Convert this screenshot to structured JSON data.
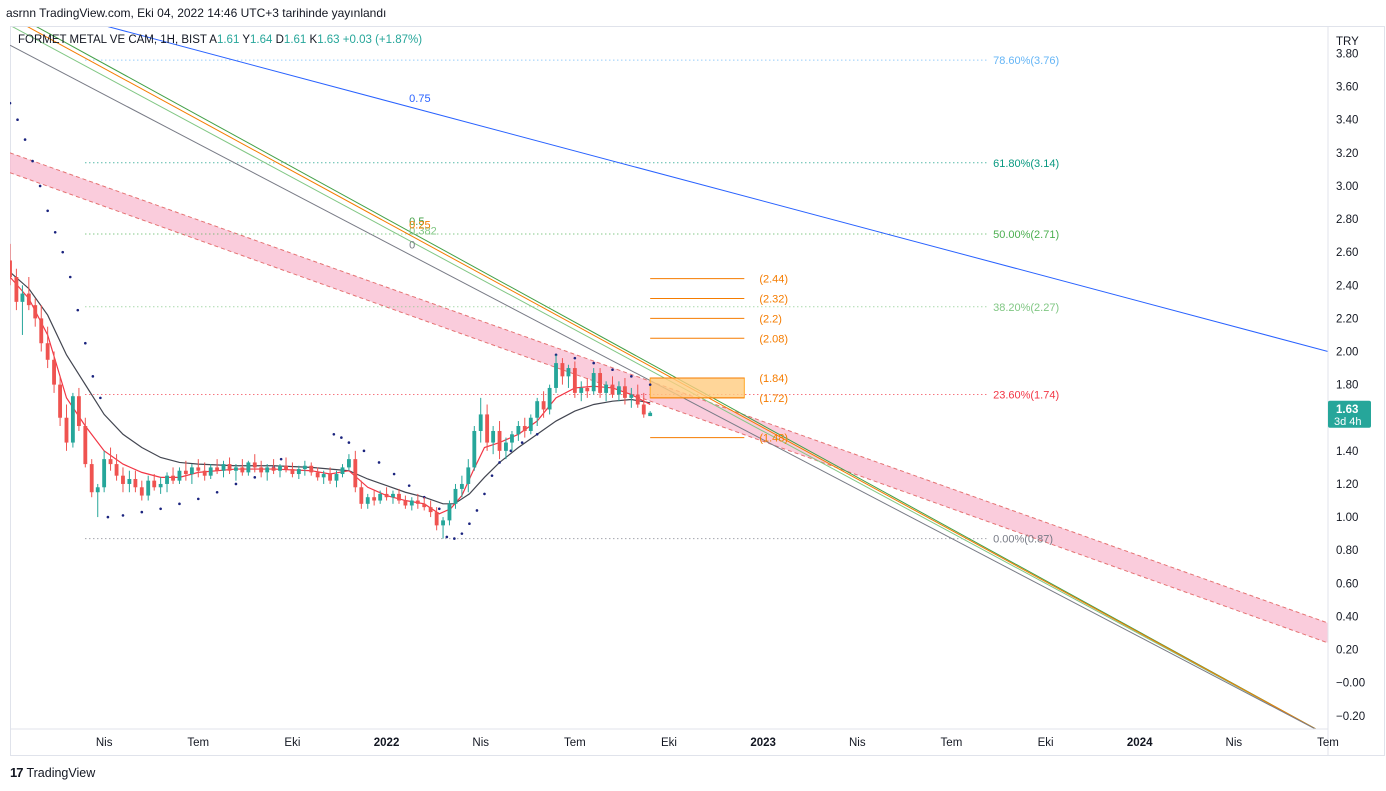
{
  "header": {
    "publish_text": "asrnn TradingView.com, Eki 04, 2022 14:46 UTC+3 tarihinde yayınlandı"
  },
  "legend": {
    "symbol": "FORMET METAL VE CAM, 1H, BIST",
    "open_label": "A",
    "open": "1.61",
    "high_label": "Y",
    "high": "1.64",
    "low_label": "D",
    "low": "1.61",
    "close_label": "K",
    "close": "1.63",
    "change": "+0.03 (+1.87%)"
  },
  "footer": {
    "brand": "TradingView",
    "logo_text": "17"
  },
  "colors": {
    "up": "#26a69a",
    "down": "#ef5350",
    "sar": "#1a237e",
    "ema_fast": "#f23645",
    "ema_slow": "#434651"
  },
  "chart_data": {
    "type": "candlestick",
    "currency": "TRY",
    "ylim": [
      -0.28,
      3.96
    ],
    "y_ticks": [
      "3.80",
      "3.60",
      "3.40",
      "3.20",
      "3.00",
      "2.80",
      "2.60",
      "2.40",
      "2.20",
      "2.00",
      "1.80",
      "1.60",
      "1.40",
      "1.20",
      "1.00",
      "0.80",
      "0.60",
      "0.40",
      "0.20",
      "−0.00",
      "−0.20"
    ],
    "y_tick_values": [
      3.8,
      3.6,
      3.4,
      3.2,
      3.0,
      2.8,
      2.6,
      2.4,
      2.2,
      2.0,
      1.8,
      1.6,
      1.4,
      1.2,
      1.0,
      0.8,
      0.6,
      0.4,
      0.2,
      0.0,
      -0.2
    ],
    "x_ticks": [
      {
        "label": "Nis",
        "t": 2021.25,
        "bold": false
      },
      {
        "label": "Tem",
        "t": 2021.5,
        "bold": false
      },
      {
        "label": "Eki",
        "t": 2021.75,
        "bold": false
      },
      {
        "label": "2022",
        "t": 2022.0,
        "bold": true
      },
      {
        "label": "Nis",
        "t": 2022.25,
        "bold": false
      },
      {
        "label": "Tem",
        "t": 2022.5,
        "bold": false
      },
      {
        "label": "Eki",
        "t": 2022.75,
        "bold": false
      },
      {
        "label": "2023",
        "t": 2023.0,
        "bold": true
      },
      {
        "label": "Nis",
        "t": 2023.25,
        "bold": false
      },
      {
        "label": "Tem",
        "t": 2023.5,
        "bold": false
      },
      {
        "label": "Eki",
        "t": 2023.75,
        "bold": false
      },
      {
        "label": "2024",
        "t": 2024.0,
        "bold": true
      },
      {
        "label": "Nis",
        "t": 2024.25,
        "bold": false
      },
      {
        "label": "Tem",
        "t": 2024.5,
        "bold": false
      }
    ],
    "xlim": [
      2021.0,
      2024.5
    ],
    "last_price": {
      "value": "1.63",
      "countdown": "3d 4h",
      "y": 1.63
    },
    "candles": [
      [
        2021.0,
        2.55,
        2.65,
        2.4,
        2.45
      ],
      [
        2021.017,
        2.45,
        2.5,
        2.25,
        2.3
      ],
      [
        2021.033,
        2.3,
        2.4,
        2.1,
        2.35
      ],
      [
        2021.05,
        2.35,
        2.45,
        2.25,
        2.28
      ],
      [
        2021.067,
        2.28,
        2.32,
        2.15,
        2.2
      ],
      [
        2021.083,
        2.2,
        2.28,
        2.0,
        2.05
      ],
      [
        2021.1,
        2.05,
        2.15,
        1.9,
        1.95
      ],
      [
        2021.117,
        1.95,
        2.0,
        1.75,
        1.8
      ],
      [
        2021.133,
        1.8,
        1.85,
        1.55,
        1.6
      ],
      [
        2021.15,
        1.6,
        1.68,
        1.4,
        1.45
      ],
      [
        2021.167,
        1.45,
        1.75,
        1.42,
        1.73
      ],
      [
        2021.183,
        1.73,
        1.78,
        1.52,
        1.55
      ],
      [
        2021.2,
        1.55,
        1.6,
        1.3,
        1.32
      ],
      [
        2021.217,
        1.32,
        1.35,
        1.12,
        1.15
      ],
      [
        2021.233,
        1.15,
        1.2,
        1.0,
        1.18
      ],
      [
        2021.25,
        1.18,
        1.4,
        1.15,
        1.35
      ],
      [
        2021.267,
        1.35,
        1.42,
        1.28,
        1.32
      ],
      [
        2021.283,
        1.32,
        1.38,
        1.22,
        1.25
      ],
      [
        2021.3,
        1.25,
        1.3,
        1.15,
        1.2
      ],
      [
        2021.317,
        1.2,
        1.28,
        1.15,
        1.23
      ],
      [
        2021.333,
        1.23,
        1.28,
        1.15,
        1.18
      ],
      [
        2021.35,
        1.18,
        1.22,
        1.1,
        1.13
      ],
      [
        2021.367,
        1.13,
        1.25,
        1.1,
        1.22
      ],
      [
        2021.383,
        1.22,
        1.26,
        1.16,
        1.18
      ],
      [
        2021.4,
        1.18,
        1.24,
        1.14,
        1.2
      ],
      [
        2021.417,
        1.2,
        1.27,
        1.15,
        1.25
      ],
      [
        2021.433,
        1.25,
        1.3,
        1.2,
        1.22
      ],
      [
        2021.45,
        1.22,
        1.3,
        1.2,
        1.28
      ],
      [
        2021.467,
        1.28,
        1.34,
        1.22,
        1.26
      ],
      [
        2021.483,
        1.26,
        1.32,
        1.2,
        1.3
      ],
      [
        2021.5,
        1.3,
        1.35,
        1.24,
        1.28
      ],
      [
        2021.517,
        1.28,
        1.33,
        1.22,
        1.25
      ],
      [
        2021.533,
        1.25,
        1.32,
        1.23,
        1.3
      ],
      [
        2021.55,
        1.3,
        1.35,
        1.26,
        1.28
      ],
      [
        2021.567,
        1.28,
        1.34,
        1.24,
        1.32
      ],
      [
        2021.583,
        1.32,
        1.36,
        1.26,
        1.28
      ],
      [
        2021.6,
        1.28,
        1.32,
        1.22,
        1.3
      ],
      [
        2021.617,
        1.3,
        1.35,
        1.25,
        1.27
      ],
      [
        2021.633,
        1.27,
        1.34,
        1.25,
        1.33
      ],
      [
        2021.65,
        1.33,
        1.38,
        1.27,
        1.3
      ],
      [
        2021.667,
        1.3,
        1.34,
        1.24,
        1.27
      ],
      [
        2021.683,
        1.27,
        1.32,
        1.22,
        1.3
      ],
      [
        2021.7,
        1.3,
        1.35,
        1.26,
        1.28
      ],
      [
        2021.717,
        1.28,
        1.32,
        1.24,
        1.31
      ],
      [
        2021.733,
        1.31,
        1.36,
        1.27,
        1.29
      ],
      [
        2021.75,
        1.29,
        1.33,
        1.24,
        1.26
      ],
      [
        2021.767,
        1.26,
        1.31,
        1.23,
        1.29
      ],
      [
        2021.783,
        1.29,
        1.34,
        1.25,
        1.31
      ],
      [
        2021.8,
        1.31,
        1.33,
        1.25,
        1.27
      ],
      [
        2021.817,
        1.27,
        1.3,
        1.22,
        1.24
      ],
      [
        2021.833,
        1.24,
        1.28,
        1.2,
        1.26
      ],
      [
        2021.85,
        1.26,
        1.3,
        1.2,
        1.22
      ],
      [
        2021.867,
        1.22,
        1.28,
        1.18,
        1.26
      ],
      [
        2021.883,
        1.26,
        1.32,
        1.24,
        1.3
      ],
      [
        2021.9,
        1.3,
        1.38,
        1.28,
        1.35
      ],
      [
        2021.917,
        1.35,
        1.4,
        1.15,
        1.18
      ],
      [
        2021.933,
        1.18,
        1.22,
        1.05,
        1.08
      ],
      [
        2021.95,
        1.08,
        1.14,
        1.05,
        1.12
      ],
      [
        2021.967,
        1.12,
        1.16,
        1.07,
        1.1
      ],
      [
        2021.983,
        1.1,
        1.16,
        1.08,
        1.14
      ],
      [
        2022.0,
        1.14,
        1.18,
        1.1,
        1.12
      ],
      [
        2022.017,
        1.12,
        1.16,
        1.08,
        1.14
      ],
      [
        2022.033,
        1.14,
        1.17,
        1.08,
        1.1
      ],
      [
        2022.05,
        1.1,
        1.13,
        1.05,
        1.07
      ],
      [
        2022.067,
        1.07,
        1.12,
        1.04,
        1.1
      ],
      [
        2022.083,
        1.1,
        1.14,
        1.05,
        1.08
      ],
      [
        2022.1,
        1.08,
        1.12,
        1.04,
        1.06
      ],
      [
        2022.117,
        1.06,
        1.1,
        1.0,
        1.03
      ],
      [
        2022.133,
        1.03,
        1.06,
        0.92,
        0.95
      ],
      [
        2022.15,
        0.95,
        1.0,
        0.87,
        0.98
      ],
      [
        2022.167,
        0.98,
        1.1,
        0.95,
        1.08
      ],
      [
        2022.183,
        1.08,
        1.2,
        1.05,
        1.17
      ],
      [
        2022.2,
        1.17,
        1.25,
        1.12,
        1.2
      ],
      [
        2022.217,
        1.2,
        1.35,
        1.15,
        1.3
      ],
      [
        2022.233,
        1.3,
        1.55,
        1.28,
        1.52
      ],
      [
        2022.25,
        1.52,
        1.72,
        1.45,
        1.62
      ],
      [
        2022.267,
        1.62,
        1.68,
        1.4,
        1.45
      ],
      [
        2022.283,
        1.45,
        1.55,
        1.38,
        1.52
      ],
      [
        2022.3,
        1.52,
        1.58,
        1.35,
        1.4
      ],
      [
        2022.317,
        1.4,
        1.48,
        1.35,
        1.45
      ],
      [
        2022.333,
        1.45,
        1.52,
        1.4,
        1.5
      ],
      [
        2022.35,
        1.5,
        1.58,
        1.46,
        1.55
      ],
      [
        2022.367,
        1.55,
        1.6,
        1.48,
        1.52
      ],
      [
        2022.383,
        1.52,
        1.62,
        1.5,
        1.6
      ],
      [
        2022.4,
        1.6,
        1.72,
        1.55,
        1.7
      ],
      [
        2022.417,
        1.7,
        1.76,
        1.6,
        1.65
      ],
      [
        2022.433,
        1.65,
        1.8,
        1.62,
        1.78
      ],
      [
        2022.45,
        1.78,
        1.98,
        1.75,
        1.93
      ],
      [
        2022.467,
        1.93,
        1.96,
        1.8,
        1.85
      ],
      [
        2022.483,
        1.85,
        1.92,
        1.78,
        1.9
      ],
      [
        2022.5,
        1.9,
        1.94,
        1.72,
        1.75
      ],
      [
        2022.517,
        1.75,
        1.82,
        1.7,
        1.78
      ],
      [
        2022.533,
        1.78,
        1.84,
        1.72,
        1.76
      ],
      [
        2022.55,
        1.76,
        1.9,
        1.74,
        1.87
      ],
      [
        2022.567,
        1.87,
        1.9,
        1.72,
        1.75
      ],
      [
        2022.583,
        1.75,
        1.82,
        1.7,
        1.8
      ],
      [
        2022.6,
        1.8,
        1.85,
        1.72,
        1.74
      ],
      [
        2022.617,
        1.74,
        1.82,
        1.7,
        1.79
      ],
      [
        2022.633,
        1.79,
        1.84,
        1.68,
        1.72
      ],
      [
        2022.65,
        1.72,
        1.78,
        1.66,
        1.74
      ],
      [
        2022.667,
        1.74,
        1.8,
        1.66,
        1.68
      ],
      [
        2022.683,
        1.68,
        1.75,
        1.6,
        1.62
      ],
      [
        2022.7,
        1.61,
        1.64,
        1.61,
        1.63
      ]
    ],
    "ema_fast": [
      [
        2021.0,
        2.45
      ],
      [
        2021.05,
        2.32
      ],
      [
        2021.1,
        2.1
      ],
      [
        2021.15,
        1.72
      ],
      [
        2021.2,
        1.55
      ],
      [
        2021.25,
        1.4
      ],
      [
        2021.3,
        1.32
      ],
      [
        2021.35,
        1.27
      ],
      [
        2021.4,
        1.24
      ],
      [
        2021.45,
        1.24
      ],
      [
        2021.5,
        1.27
      ],
      [
        2021.6,
        1.29
      ],
      [
        2021.7,
        1.29
      ],
      [
        2021.8,
        1.28
      ],
      [
        2021.85,
        1.26
      ],
      [
        2021.9,
        1.28
      ],
      [
        2021.95,
        1.18
      ],
      [
        2022.0,
        1.13
      ],
      [
        2022.05,
        1.1
      ],
      [
        2022.1,
        1.08
      ],
      [
        2022.14,
        1.02
      ],
      [
        2022.17,
        1.05
      ],
      [
        2022.2,
        1.13
      ],
      [
        2022.23,
        1.28
      ],
      [
        2022.26,
        1.42
      ],
      [
        2022.3,
        1.45
      ],
      [
        2022.35,
        1.5
      ],
      [
        2022.4,
        1.58
      ],
      [
        2022.45,
        1.72
      ],
      [
        2022.5,
        1.78
      ],
      [
        2022.55,
        1.79
      ],
      [
        2022.6,
        1.78
      ],
      [
        2022.65,
        1.74
      ],
      [
        2022.7,
        1.68
      ]
    ],
    "ema_slow": [
      [
        2021.0,
        2.48
      ],
      [
        2021.05,
        2.38
      ],
      [
        2021.1,
        2.22
      ],
      [
        2021.15,
        1.98
      ],
      [
        2021.2,
        1.8
      ],
      [
        2021.25,
        1.62
      ],
      [
        2021.3,
        1.5
      ],
      [
        2021.35,
        1.42
      ],
      [
        2021.4,
        1.36
      ],
      [
        2021.45,
        1.33
      ],
      [
        2021.5,
        1.32
      ],
      [
        2021.6,
        1.31
      ],
      [
        2021.7,
        1.31
      ],
      [
        2021.8,
        1.3
      ],
      [
        2021.9,
        1.28
      ],
      [
        2021.95,
        1.23
      ],
      [
        2022.0,
        1.19
      ],
      [
        2022.05,
        1.15
      ],
      [
        2022.1,
        1.12
      ],
      [
        2022.15,
        1.08
      ],
      [
        2022.18,
        1.08
      ],
      [
        2022.22,
        1.14
      ],
      [
        2022.26,
        1.24
      ],
      [
        2022.3,
        1.33
      ],
      [
        2022.35,
        1.42
      ],
      [
        2022.4,
        1.5
      ],
      [
        2022.45,
        1.58
      ],
      [
        2022.5,
        1.64
      ],
      [
        2022.55,
        1.68
      ],
      [
        2022.6,
        1.7
      ],
      [
        2022.65,
        1.71
      ],
      [
        2022.7,
        1.69
      ]
    ],
    "parabolic_sar": [
      [
        2021.0,
        3.5
      ],
      [
        2021.02,
        3.4
      ],
      [
        2021.04,
        3.28
      ],
      [
        2021.06,
        3.15
      ],
      [
        2021.08,
        3.0
      ],
      [
        2021.1,
        2.85
      ],
      [
        2021.12,
        2.72
      ],
      [
        2021.14,
        2.6
      ],
      [
        2021.16,
        2.45
      ],
      [
        2021.18,
        2.25
      ],
      [
        2021.2,
        2.05
      ],
      [
        2021.22,
        1.85
      ],
      [
        2021.24,
        1.72
      ],
      [
        2021.26,
        1.0
      ],
      [
        2021.3,
        1.01
      ],
      [
        2021.35,
        1.03
      ],
      [
        2021.4,
        1.05
      ],
      [
        2021.45,
        1.08
      ],
      [
        2021.5,
        1.11
      ],
      [
        2021.55,
        1.15
      ],
      [
        2021.6,
        1.2
      ],
      [
        2021.65,
        1.24
      ],
      [
        2021.7,
        1.3
      ],
      [
        2021.72,
        1.35
      ],
      [
        2021.86,
        1.5
      ],
      [
        2021.88,
        1.48
      ],
      [
        2021.9,
        1.45
      ],
      [
        2021.94,
        1.4
      ],
      [
        2021.98,
        1.33
      ],
      [
        2022.02,
        1.26
      ],
      [
        2022.06,
        1.19
      ],
      [
        2022.1,
        1.12
      ],
      [
        2022.14,
        1.05
      ],
      [
        2022.16,
        0.88
      ],
      [
        2022.18,
        0.87
      ],
      [
        2022.2,
        0.9
      ],
      [
        2022.22,
        0.96
      ],
      [
        2022.24,
        1.04
      ],
      [
        2022.26,
        1.14
      ],
      [
        2022.28,
        1.25
      ],
      [
        2022.3,
        1.33
      ],
      [
        2022.33,
        1.4
      ],
      [
        2022.36,
        1.45
      ],
      [
        2022.4,
        1.5
      ],
      [
        2022.45,
        1.98
      ],
      [
        2022.5,
        1.96
      ],
      [
        2022.55,
        1.93
      ],
      [
        2022.6,
        1.89
      ],
      [
        2022.65,
        1.85
      ],
      [
        2022.7,
        1.8
      ]
    ],
    "fib_retracement": {
      "levels": [
        {
          "label": "78.60%(3.76)",
          "value": 3.76,
          "color": "#64b5f6"
        },
        {
          "label": "61.80%(3.14)",
          "value": 3.14,
          "color": "#089981"
        },
        {
          "label": "50.00%(2.71)",
          "value": 2.71,
          "color": "#4caf50"
        },
        {
          "label": "38.20%(2.27)",
          "value": 2.27,
          "color": "#81c784"
        },
        {
          "label": "23.60%(1.74)",
          "value": 1.74,
          "color": "#f23645"
        },
        {
          "label": "0.00%(0.87)",
          "value": 0.87,
          "color": "#787b86"
        }
      ]
    },
    "fib_fan": {
      "origin": [
        2022.15,
        0.87
      ],
      "lines": [
        {
          "label": "0.75",
          "color": "#2962ff",
          "y_at_start": 4.12,
          "y_at_end": 2.0
        },
        {
          "label": "0.5",
          "color": "#43a047",
          "y_at_start": 4.05,
          "y_at_end": -0.32
        },
        {
          "label": "0.382",
          "color": "#81c784",
          "y_at_start": 3.97,
          "y_at_end": -0.32
        },
        {
          "label": "0.25",
          "color": "#f57c00",
          "y_at_start": 4.02,
          "y_at_end": -0.32
        },
        {
          "label": "0",
          "color": "#787b86",
          "y_at_start": 3.85,
          "y_at_end": -0.32
        }
      ]
    },
    "channel": {
      "y_at_start_top": 3.2,
      "y_at_start_bot": 3.08,
      "y_at_end_top": 0.36,
      "y_at_end_bot": 0.24
    },
    "targets": [
      {
        "label": "(2.44)",
        "value": 2.44
      },
      {
        "label": "(2.32)",
        "value": 2.32
      },
      {
        "label": "(2.2)",
        "value": 2.2
      },
      {
        "label": "(2.08)",
        "value": 2.08
      },
      {
        "label": "(1.84)",
        "value": 1.84
      },
      {
        "label": "(1.72)",
        "value": 1.72
      },
      {
        "label": "(1.48)",
        "value": 1.48
      }
    ],
    "zone": {
      "top": 1.84,
      "bottom": 1.72
    }
  }
}
